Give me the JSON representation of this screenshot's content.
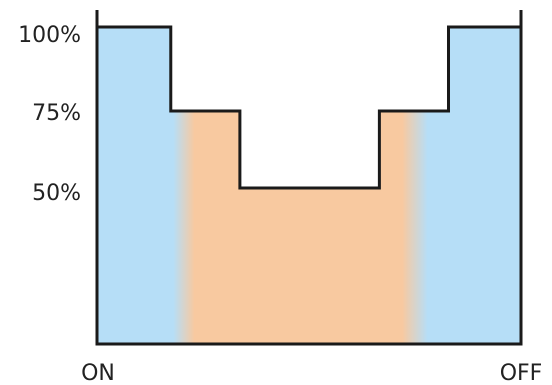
{
  "chart_data": {
    "type": "area",
    "title": "",
    "xlabel": "",
    "ylabel": "",
    "x_labels": {
      "start": "ON",
      "end": "OFF"
    },
    "y_ticks": [
      {
        "value": 100,
        "label": "100%"
      },
      {
        "value": 75,
        "label": "75%"
      },
      {
        "value": 50,
        "label": "50%"
      }
    ],
    "ylim": [
      0,
      100
    ],
    "xlim": [
      0,
      100
    ],
    "step_profile": [
      {
        "x_start": 0,
        "x_end": 17.4,
        "y": 100
      },
      {
        "x_start": 17.4,
        "x_end": 33.7,
        "y": 75
      },
      {
        "x_start": 33.7,
        "x_end": 66.6,
        "y": 50
      },
      {
        "x_start": 66.6,
        "x_end": 82.9,
        "y": 75
      },
      {
        "x_start": 82.9,
        "x_end": 100,
        "y": 100
      }
    ],
    "fill_colors": {
      "outer": "#b6def7",
      "inner": "#f8c9a0"
    },
    "outline_color": "#1a1a1a",
    "grid": false
  }
}
